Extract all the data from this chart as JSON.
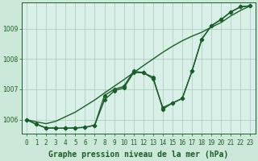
{
  "background_color": "#cce8d8",
  "plot_bg_color": "#d8f0e8",
  "grid_color": "#a8c8b8",
  "line_color": "#1a5e28",
  "title": "Graphe pression niveau de la mer (hPa)",
  "xlim": [
    -0.5,
    23.5
  ],
  "ylim": [
    1005.55,
    1009.85
  ],
  "yticks": [
    1006,
    1007,
    1008,
    1009
  ],
  "xtick_labels": [
    "0",
    "1",
    "2",
    "3",
    "4",
    "5",
    "6",
    "7",
    "8",
    "9",
    "10",
    "11",
    "12",
    "13",
    "14",
    "15",
    "16",
    "17",
    "18",
    "19",
    "20",
    "21",
    "22",
    "23"
  ],
  "series_smooth": [
    1006.0,
    1005.93,
    1005.87,
    1005.95,
    1006.1,
    1006.25,
    1006.45,
    1006.65,
    1006.88,
    1007.1,
    1007.32,
    1007.55,
    1007.78,
    1008.0,
    1008.22,
    1008.42,
    1008.6,
    1008.75,
    1008.88,
    1009.05,
    1009.2,
    1009.42,
    1009.6,
    1009.75
  ],
  "series_marker1": [
    1006.0,
    1005.85,
    1005.73,
    1005.72,
    1005.72,
    1005.73,
    1005.75,
    1005.82,
    1006.65,
    1006.95,
    1007.05,
    1007.55,
    1007.55,
    1007.35,
    1006.4,
    1006.55,
    1006.7,
    1007.6,
    1008.65,
    1009.1,
    1009.3,
    1009.55,
    1009.72,
    1009.75
  ],
  "series_marker2": [
    1006.0,
    1005.85,
    1005.73,
    1005.72,
    1005.72,
    1005.73,
    1005.75,
    1005.82,
    1006.8,
    1007.0,
    1007.1,
    1007.6,
    1007.55,
    1007.4,
    1006.35,
    1006.55,
    1006.7,
    1007.6,
    1008.65,
    1009.1,
    1009.3,
    1009.55,
    1009.72,
    1009.75
  ],
  "marker": "D",
  "markersize": 2.2,
  "linewidth": 1.0,
  "title_fontsize": 7.0,
  "tick_fontsize": 5.5
}
